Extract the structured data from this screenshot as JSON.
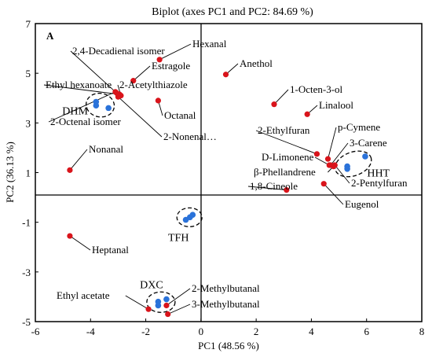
{
  "chart_data": {
    "type": "scatter",
    "title": "Biplot (axes PC1 and PC2: 84.69 %)",
    "panel_label": "A",
    "xlabel": "PC1 (48.56 %)",
    "ylabel": "PC2 (36.13 %)",
    "xlim": [
      -6,
      8
    ],
    "ylim": [
      -5,
      7
    ],
    "xticks": [
      -6,
      -4,
      -2,
      0,
      2,
      4,
      6,
      8
    ],
    "yticks": [
      -5,
      -3,
      -1,
      1,
      3,
      5,
      7
    ],
    "colors": {
      "variables": "#d9141b",
      "observations": "#2a72d9"
    },
    "variables": [
      {
        "label": "Hexanal",
        "x": -1.5,
        "y": 5.55
      },
      {
        "label": "2,4-Decadienal isomer",
        "x": -3.05,
        "y": 4.2
      },
      {
        "label": "Estragole",
        "x": -2.45,
        "y": 4.7
      },
      {
        "label": "Ethyl hexanoate",
        "x": -2.95,
        "y": 4.15
      },
      {
        "label": "2-Acetylthiazole",
        "x": -2.9,
        "y": 4.1
      },
      {
        "label": "Octanal",
        "x": -1.55,
        "y": 3.9
      },
      {
        "label": "2-Octenal isomer",
        "x": -3.1,
        "y": 4.25
      },
      {
        "label": "2-Nonenal…",
        "x": -3.0,
        "y": 4.05
      },
      {
        "label": "Anethol",
        "x": 0.9,
        "y": 4.95
      },
      {
        "label": "1-Octen-3-ol",
        "x": 2.65,
        "y": 3.75
      },
      {
        "label": "Linalool",
        "x": 3.85,
        "y": 3.35
      },
      {
        "label": "Nonanal",
        "x": -4.75,
        "y": 1.1
      },
      {
        "label": "2-Ethylfuran",
        "x": 4.2,
        "y": 1.75
      },
      {
        "label": "p-Cymene",
        "x": 4.6,
        "y": 1.55
      },
      {
        "label": "D-Limonene",
        "x": 4.65,
        "y": 1.3
      },
      {
        "label": "β-Phellandrene",
        "x": 4.8,
        "y": 1.25
      },
      {
        "label": "3-Carene",
        "x": 4.7,
        "y": 1.3
      },
      {
        "label": "2-Pentylfuran",
        "x": 4.85,
        "y": 1.3
      },
      {
        "label": "1,8-Cineole",
        "x": 3.1,
        "y": 0.3
      },
      {
        "label": "Eugenol",
        "x": 4.45,
        "y": 0.55
      },
      {
        "label": "Heptanal",
        "x": -4.75,
        "y": -1.55
      },
      {
        "label": "Ethyl acetate",
        "x": -1.9,
        "y": -4.5
      },
      {
        "label": "2-Methylbutanal",
        "x": -1.25,
        "y": -4.35
      },
      {
        "label": "3-Methylbutanal",
        "x": -1.2,
        "y": -4.7
      }
    ],
    "observations": [
      {
        "group": "DHM",
        "x": -3.8,
        "y": 3.85
      },
      {
        "group": "DHM",
        "x": -3.35,
        "y": 3.6
      },
      {
        "group": "DHM",
        "x": -3.8,
        "y": 3.7
      },
      {
        "group": "TFH",
        "x": -0.55,
        "y": -0.9
      },
      {
        "group": "TFH",
        "x": -0.4,
        "y": -0.8
      },
      {
        "group": "TFH",
        "x": -0.3,
        "y": -0.7
      },
      {
        "group": "HHT",
        "x": 5.3,
        "y": 1.25
      },
      {
        "group": "HHT",
        "x": 5.3,
        "y": 1.15
      },
      {
        "group": "HHT",
        "x": 5.95,
        "y": 1.65
      },
      {
        "group": "DXC",
        "x": -1.55,
        "y": -4.2
      },
      {
        "group": "DXC",
        "x": -1.55,
        "y": -4.35
      },
      {
        "group": "DXC",
        "x": -1.25,
        "y": -4.1
      }
    ],
    "groups": [
      "DHM",
      "TFH",
      "HHT",
      "DXC"
    ],
    "grid": false
  }
}
